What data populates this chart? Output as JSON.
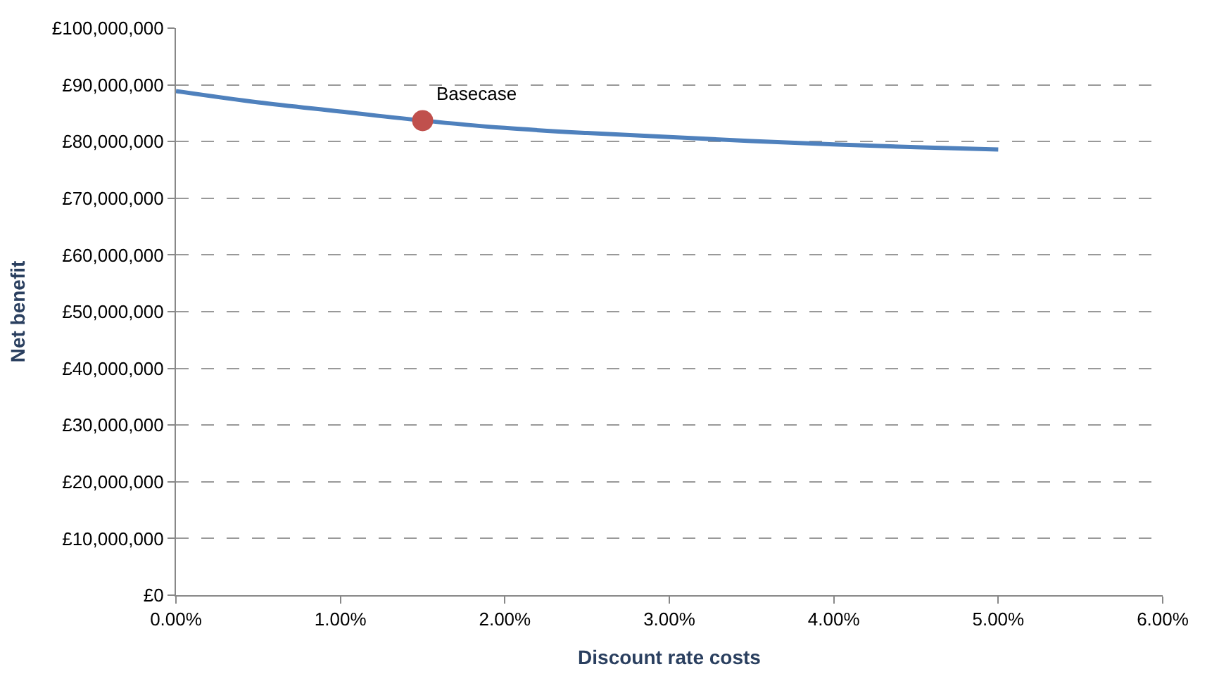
{
  "chart_data": {
    "type": "line",
    "xlabel": "Discount rate costs",
    "ylabel": "Net benefit",
    "series": [
      {
        "color": "#4f81bd",
        "marker": "none",
        "x": [
          0,
          0.5,
          1,
          1.5,
          2,
          2.5,
          3,
          3.5,
          4,
          4.5,
          5
        ],
        "values": [
          88900000,
          86900000,
          85300000,
          83700000,
          82400000,
          81500000,
          80800000,
          80100000,
          79500000,
          79000000,
          78600000
        ]
      },
      {
        "type": "scatter",
        "color": "#c0504d",
        "marker": "circle",
        "x": [
          1.5
        ],
        "values": [
          83700000
        ]
      }
    ],
    "annotations": [
      {
        "text": "Basecase",
        "x": 1.5,
        "y": 83700000
      }
    ],
    "xlim": [
      0,
      6
    ],
    "xticks": [
      {
        "value": 0,
        "label": "0.00%"
      },
      {
        "value": 1,
        "label": "1.00%"
      },
      {
        "value": 2,
        "label": "2.00%"
      },
      {
        "value": 3,
        "label": "3.00%"
      },
      {
        "value": 4,
        "label": "4.00%"
      },
      {
        "value": 5,
        "label": "5.00%"
      },
      {
        "value": 6,
        "label": "6.00%"
      }
    ],
    "ylim": [
      0,
      100000000
    ],
    "yticks": [
      {
        "value": 0,
        "label": "£0"
      },
      {
        "value": 10000000,
        "label": "£10,000,000"
      },
      {
        "value": 20000000,
        "label": "£20,000,000"
      },
      {
        "value": 30000000,
        "label": "£30,000,000"
      },
      {
        "value": 40000000,
        "label": "£40,000,000"
      },
      {
        "value": 50000000,
        "label": "£50,000,000"
      },
      {
        "value": 60000000,
        "label": "£60,000,000"
      },
      {
        "value": 70000000,
        "label": "£70,000,000"
      },
      {
        "value": 80000000,
        "label": "£80,000,000"
      },
      {
        "value": 90000000,
        "label": "£90,000,000"
      },
      {
        "value": 100000000,
        "label": "£100,000,000"
      }
    ],
    "grid": "y"
  }
}
